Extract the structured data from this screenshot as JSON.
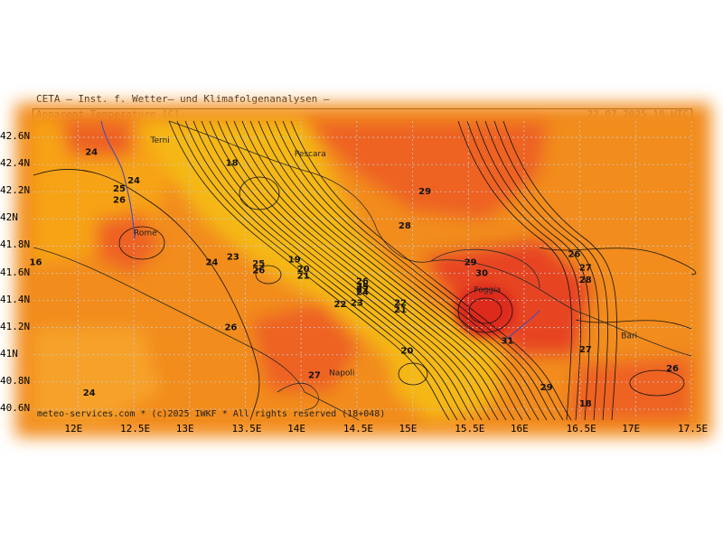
{
  "header": {
    "source": "CETA – Inst. f. Wetter– und Klimafolgenanalysen –",
    "product": "Apparent_Temperature [C]",
    "valid_time": "22.07.2025 18 UTC"
  },
  "footer": {
    "credit": "meteo-services.com * (c)2025 IWKF * All rights reserved (18+048)"
  },
  "axes": {
    "x_ticks": [
      "12E",
      "12.5E",
      "13E",
      "13.5E",
      "14E",
      "14.5E",
      "15E",
      "15.5E",
      "16E",
      "16.5E",
      "17E",
      "17.5E"
    ],
    "y_ticks": [
      "42.6N",
      "42.4N",
      "42.2N",
      "42N",
      "41.8N",
      "41.6N",
      "41.4N",
      "41.2N",
      "41N",
      "40.8N",
      "40.6N"
    ]
  },
  "cities": [
    {
      "name": "Terni"
    },
    {
      "name": "Pescara"
    },
    {
      "name": "Rome"
    },
    {
      "name": "Foggia"
    },
    {
      "name": "Napoli"
    },
    {
      "name": "Bari"
    }
  ],
  "contour_labels": [
    {
      "text": "24",
      "lon": 12.12,
      "lat": 42.47
    },
    {
      "text": "24",
      "lon": 12.5,
      "lat": 42.26
    },
    {
      "text": "25",
      "lon": 12.37,
      "lat": 42.2
    },
    {
      "text": "26",
      "lon": 12.37,
      "lat": 42.12
    },
    {
      "text": "18",
      "lon": 13.38,
      "lat": 42.39
    },
    {
      "text": "29",
      "lon": 15.11,
      "lat": 42.18
    },
    {
      "text": "28",
      "lon": 14.93,
      "lat": 41.93
    },
    {
      "text": "24",
      "lon": 13.2,
      "lat": 41.66
    },
    {
      "text": "23",
      "lon": 13.39,
      "lat": 41.7
    },
    {
      "text": "25",
      "lon": 13.62,
      "lat": 41.65
    },
    {
      "text": "26",
      "lon": 13.62,
      "lat": 41.6
    },
    {
      "text": "19",
      "lon": 13.94,
      "lat": 41.68
    },
    {
      "text": "20",
      "lon": 14.02,
      "lat": 41.61
    },
    {
      "text": "21",
      "lon": 14.02,
      "lat": 41.56
    },
    {
      "text": "26",
      "lon": 14.55,
      "lat": 41.52
    },
    {
      "text": "25",
      "lon": 14.55,
      "lat": 41.48
    },
    {
      "text": "24",
      "lon": 14.55,
      "lat": 41.44
    },
    {
      "text": "27",
      "lon": 14.55,
      "lat": 41.46
    },
    {
      "text": "22",
      "lon": 14.35,
      "lat": 41.35
    },
    {
      "text": "23",
      "lon": 14.5,
      "lat": 41.36
    },
    {
      "text": "22",
      "lon": 14.89,
      "lat": 41.36
    },
    {
      "text": "21",
      "lon": 14.89,
      "lat": 41.31
    },
    {
      "text": "29",
      "lon": 15.52,
      "lat": 41.66
    },
    {
      "text": "30",
      "lon": 15.62,
      "lat": 41.58
    },
    {
      "text": "26",
      "lon": 16.45,
      "lat": 41.72
    },
    {
      "text": "27",
      "lon": 16.55,
      "lat": 41.62
    },
    {
      "text": "28",
      "lon": 16.55,
      "lat": 41.53
    },
    {
      "text": "26",
      "lon": 13.37,
      "lat": 41.18
    },
    {
      "text": "20",
      "lon": 14.95,
      "lat": 41.01
    },
    {
      "text": "31",
      "lon": 15.85,
      "lat": 41.08
    },
    {
      "text": "27",
      "lon": 16.55,
      "lat": 41.02
    },
    {
      "text": "27",
      "lon": 14.12,
      "lat": 40.83
    },
    {
      "text": "29",
      "lon": 16.2,
      "lat": 40.74
    },
    {
      "text": "26",
      "lon": 17.33,
      "lat": 40.88
    },
    {
      "text": "18",
      "lon": 16.55,
      "lat": 40.62
    },
    {
      "text": "24",
      "lon": 12.1,
      "lat": 40.7
    },
    {
      "text": "16",
      "lon": 11.62,
      "lat": 41.66
    }
  ],
  "colors": {
    "base": "#f28c1e",
    "yellow": "#f5b812",
    "amber": "#f7a315",
    "light_orange": "#f6a22a",
    "red_orange": "#ee6220",
    "red": "#e74424",
    "deep_red": "#dd2a1e",
    "contour": "#111111",
    "grid": "#c8c8c8",
    "coast": "#2a2a2a",
    "border_line": "#4b4bb0"
  }
}
